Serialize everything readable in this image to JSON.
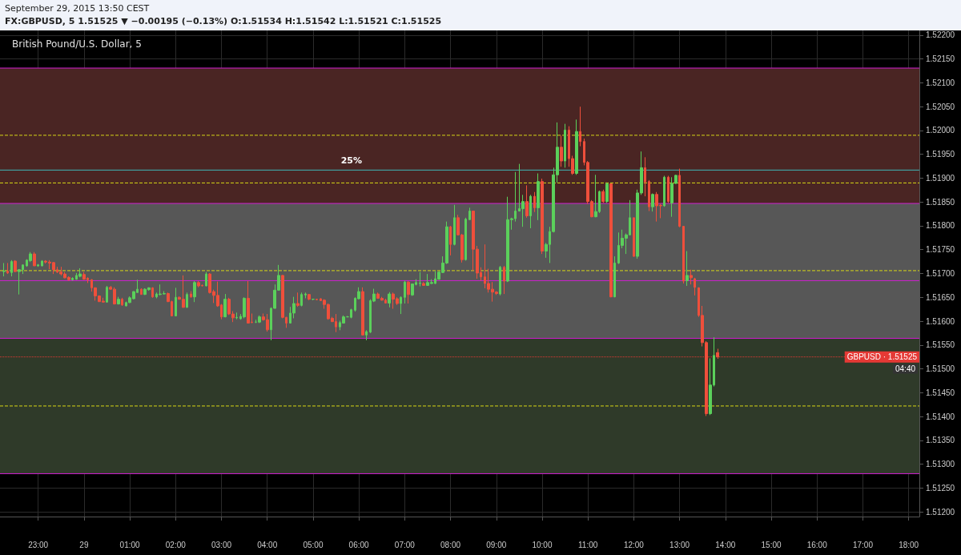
{
  "chart_data": {
    "type": "candlestick",
    "title": "British Pound/U.S. Dollar, 5",
    "subtitle": "FX:GBPUSD, 5 1.51525 ▼ −0.00195 (−0.13%) O:1.51534 H:1.51542 L:1.51521 C:1.51525",
    "annotations": [
      "September 29, 2015 13:50 CEST",
      "04:40",
      "25%"
    ],
    "x": [
      "2015-09-28T22:15",
      "2015-09-28T22:20",
      "2015-09-28T22:25",
      "2015-09-28T22:30",
      "2015-09-28T22:35",
      "2015-09-28T22:40",
      "2015-09-28T22:45",
      "2015-09-28T22:50",
      "2015-09-28T22:55",
      "2015-09-28T23:00",
      "2015-09-28T23:05",
      "2015-09-28T23:10",
      "2015-09-28T23:15",
      "2015-09-28T23:20",
      "2015-09-28T23:25",
      "2015-09-28T23:30",
      "2015-09-28T23:35",
      "2015-09-28T23:40",
      "2015-09-28T23:45",
      "2015-09-28T23:50",
      "2015-09-28T23:55",
      "2015-09-29T00:00",
      "2015-09-29T00:05",
      "2015-09-29T00:10",
      "2015-09-29T00:15",
      "2015-09-29T00:20",
      "2015-09-29T00:25",
      "2015-09-29T00:30",
      "2015-09-29T00:35",
      "2015-09-29T00:40",
      "2015-09-29T00:45",
      "2015-09-29T00:50",
      "2015-09-29T00:55",
      "2015-09-29T01:00",
      "2015-09-29T01:05",
      "2015-09-29T01:10",
      "2015-09-29T01:15",
      "2015-09-29T01:20",
      "2015-09-29T01:25",
      "2015-09-29T01:30",
      "2015-09-29T01:35",
      "2015-09-29T01:40",
      "2015-09-29T01:45",
      "2015-09-29T01:50",
      "2015-09-29T01:55",
      "2015-09-29T02:00",
      "2015-09-29T02:05",
      "2015-09-29T02:10",
      "2015-09-29T02:15",
      "2015-09-29T02:20",
      "2015-09-29T02:25",
      "2015-09-29T02:30",
      "2015-09-29T02:35",
      "2015-09-29T02:40",
      "2015-09-29T02:45",
      "2015-09-29T02:50",
      "2015-09-29T02:55",
      "2015-09-29T03:00",
      "2015-09-29T03:05",
      "2015-09-29T03:10",
      "2015-09-29T03:15",
      "2015-09-29T03:20",
      "2015-09-29T03:25",
      "2015-09-29T03:30",
      "2015-09-29T03:35",
      "2015-09-29T03:40",
      "2015-09-29T03:45",
      "2015-09-29T03:50",
      "2015-09-29T03:55",
      "2015-09-29T04:00",
      "2015-09-29T04:05",
      "2015-09-29T04:10",
      "2015-09-29T04:15",
      "2015-09-29T04:20",
      "2015-09-29T04:25",
      "2015-09-29T04:30",
      "2015-09-29T04:35",
      "2015-09-29T04:40",
      "2015-09-29T04:45",
      "2015-09-29T04:50",
      "2015-09-29T04:55",
      "2015-09-29T05:00",
      "2015-09-29T05:05",
      "2015-09-29T05:10",
      "2015-09-29T05:15",
      "2015-09-29T05:20",
      "2015-09-29T05:25",
      "2015-09-29T05:30",
      "2015-09-29T05:35",
      "2015-09-29T05:40",
      "2015-09-29T05:45",
      "2015-09-29T05:50",
      "2015-09-29T05:55",
      "2015-09-29T06:00",
      "2015-09-29T06:05",
      "2015-09-29T06:10",
      "2015-09-29T06:15",
      "2015-09-29T06:20",
      "2015-09-29T06:25",
      "2015-09-29T06:30",
      "2015-09-29T06:35",
      "2015-09-29T06:40",
      "2015-09-29T06:45",
      "2015-09-29T06:50",
      "2015-09-29T06:55",
      "2015-09-29T07:00",
      "2015-09-29T07:05",
      "2015-09-29T07:10",
      "2015-09-29T07:15",
      "2015-09-29T07:20",
      "2015-09-29T07:25",
      "2015-09-29T07:30",
      "2015-09-29T07:35",
      "2015-09-29T07:40",
      "2015-09-29T07:45",
      "2015-09-29T07:50",
      "2015-09-29T07:55",
      "2015-09-29T08:00",
      "2015-09-29T08:05",
      "2015-09-29T08:10",
      "2015-09-29T08:15",
      "2015-09-29T08:20",
      "2015-09-29T08:25",
      "2015-09-29T08:30",
      "2015-09-29T08:35",
      "2015-09-29T08:40",
      "2015-09-29T08:45",
      "2015-09-29T08:50",
      "2015-09-29T08:55",
      "2015-09-29T09:00",
      "2015-09-29T09:05",
      "2015-09-29T09:10",
      "2015-09-29T09:15",
      "2015-09-29T09:20",
      "2015-09-29T09:25",
      "2015-09-29T09:30",
      "2015-09-29T09:35",
      "2015-09-29T09:40",
      "2015-09-29T09:45",
      "2015-09-29T09:50",
      "2015-09-29T09:55",
      "2015-09-29T10:00",
      "2015-09-29T10:05",
      "2015-09-29T10:10",
      "2015-09-29T10:15",
      "2015-09-29T10:20",
      "2015-09-29T10:25",
      "2015-09-29T10:30",
      "2015-09-29T10:35",
      "2015-09-29T10:40",
      "2015-09-29T10:45",
      "2015-09-29T10:50",
      "2015-09-29T10:55",
      "2015-09-29T11:00",
      "2015-09-29T11:05",
      "2015-09-29T11:10",
      "2015-09-29T11:15",
      "2015-09-29T11:20",
      "2015-09-29T11:25",
      "2015-09-29T11:30",
      "2015-09-29T11:35",
      "2015-09-29T11:40",
      "2015-09-29T11:45",
      "2015-09-29T11:50",
      "2015-09-29T11:55",
      "2015-09-29T12:00",
      "2015-09-29T12:05",
      "2015-09-29T12:10",
      "2015-09-29T12:15",
      "2015-09-29T12:20",
      "2015-09-29T12:25",
      "2015-09-29T12:30",
      "2015-09-29T12:35",
      "2015-09-29T12:40",
      "2015-09-29T12:45",
      "2015-09-29T12:50",
      "2015-09-29T12:55",
      "2015-09-29T13:00",
      "2015-09-29T13:05",
      "2015-09-29T13:10",
      "2015-09-29T13:15",
      "2015-09-29T13:20",
      "2015-09-29T13:25",
      "2015-09-29T13:30",
      "2015-09-29T13:35",
      "2015-09-29T13:40",
      "2015-09-29T13:45",
      "2015-09-29T13:50"
    ],
    "ohlc": [
      [
        1.51704,
        1.51722,
        1.51694,
        1.51705
      ],
      [
        1.51705,
        1.51722,
        1.51699,
        1.51701
      ],
      [
        1.51702,
        1.51728,
        1.51694,
        1.51725
      ],
      [
        1.51726,
        1.51728,
        1.51703,
        1.51704
      ],
      [
        1.51704,
        1.51709,
        1.51656,
        1.51708
      ],
      [
        1.51708,
        1.51719,
        1.51699,
        1.51718
      ],
      [
        1.51716,
        1.5173,
        1.51714,
        1.51728
      ],
      [
        1.51727,
        1.51745,
        1.51724,
        1.51741
      ],
      [
        1.51741,
        1.51745,
        1.51716,
        1.51716
      ],
      [
        1.51716,
        1.5172,
        1.51714,
        1.51718
      ],
      [
        1.51716,
        1.51728,
        1.51715,
        1.51726
      ],
      [
        1.51726,
        1.51728,
        1.51721,
        1.51724
      ],
      [
        1.51724,
        1.51728,
        1.51709,
        1.51722
      ],
      [
        1.51723,
        1.51724,
        1.51699,
        1.51708
      ],
      [
        1.51708,
        1.51714,
        1.51701,
        1.51703
      ],
      [
        1.51703,
        1.51714,
        1.51696,
        1.51699
      ],
      [
        1.51699,
        1.51703,
        1.5169,
        1.51691
      ],
      [
        1.51692,
        1.51694,
        1.51685,
        1.51687
      ],
      [
        1.51687,
        1.51692,
        1.51685,
        1.5169
      ],
      [
        1.51688,
        1.51701,
        1.51687,
        1.51696
      ],
      [
        1.51694,
        1.51711,
        1.51692,
        1.51699
      ],
      [
        1.51698,
        1.51703,
        1.51687,
        1.51688
      ],
      [
        1.5169,
        1.51692,
        1.5168,
        1.51687
      ],
      [
        1.51687,
        1.51688,
        1.51662,
        1.5167
      ],
      [
        1.5167,
        1.51671,
        1.51643,
        1.51653
      ],
      [
        1.51653,
        1.51654,
        1.5164,
        1.51641
      ],
      [
        1.51642,
        1.51649,
        1.51639,
        1.5164
      ],
      [
        1.5164,
        1.51674,
        1.51639,
        1.51671
      ],
      [
        1.51671,
        1.51674,
        1.51666,
        1.51667
      ],
      [
        1.51667,
        1.51671,
        1.51635,
        1.51636
      ],
      [
        1.51636,
        1.51651,
        1.51635,
        1.51646
      ],
      [
        1.51646,
        1.51649,
        1.51632,
        1.51634
      ],
      [
        1.51632,
        1.51641,
        1.51631,
        1.51639
      ],
      [
        1.51639,
        1.51652,
        1.51638,
        1.51649
      ],
      [
        1.51647,
        1.51663,
        1.51646,
        1.51662
      ],
      [
        1.5166,
        1.51687,
        1.5166,
        1.51667
      ],
      [
        1.51667,
        1.51669,
        1.51656,
        1.51656
      ],
      [
        1.51656,
        1.51669,
        1.51655,
        1.51667
      ],
      [
        1.51666,
        1.51671,
        1.51664,
        1.5167
      ],
      [
        1.5167,
        1.51671,
        1.51649,
        1.51651
      ],
      [
        1.51651,
        1.5166,
        1.51648,
        1.51657
      ],
      [
        1.51656,
        1.51677,
        1.51654,
        1.51657
      ],
      [
        1.51657,
        1.51663,
        1.51656,
        1.51658
      ],
      [
        1.51658,
        1.5166,
        1.5164,
        1.51641
      ],
      [
        1.51641,
        1.51643,
        1.5161,
        1.51611
      ],
      [
        1.51611,
        1.5167,
        1.5161,
        1.5165
      ],
      [
        1.5165,
        1.51652,
        1.51645,
        1.51646
      ],
      [
        1.51646,
        1.51696,
        1.51628,
        1.51629
      ],
      [
        1.51629,
        1.5166,
        1.51628,
        1.51656
      ],
      [
        1.51657,
        1.51663,
        1.51649,
        1.51651
      ],
      [
        1.51651,
        1.51684,
        1.5164,
        1.51681
      ],
      [
        1.51681,
        1.51684,
        1.51671,
        1.51674
      ],
      [
        1.51675,
        1.51677,
        1.51673,
        1.51674
      ],
      [
        1.51674,
        1.51703,
        1.51673,
        1.51699
      ],
      [
        1.51699,
        1.51701,
        1.51658,
        1.5166
      ],
      [
        1.51662,
        1.51666,
        1.51638,
        1.51654
      ],
      [
        1.51654,
        1.51683,
        1.5163,
        1.51632
      ],
      [
        1.51634,
        1.51636,
        1.51604,
        1.51609
      ],
      [
        1.51609,
        1.51657,
        1.51608,
        1.51646
      ],
      [
        1.51646,
        1.51649,
        1.51613,
        1.51615
      ],
      [
        1.51615,
        1.51621,
        1.51598,
        1.51607
      ],
      [
        1.51607,
        1.51618,
        1.51604,
        1.51608
      ],
      [
        1.51605,
        1.51615,
        1.51603,
        1.5161
      ],
      [
        1.51609,
        1.5165,
        1.51606,
        1.51648
      ],
      [
        1.51648,
        1.51684,
        1.51595,
        1.51596
      ],
      [
        1.51598,
        1.51616,
        1.51596,
        1.51597
      ],
      [
        1.51598,
        1.51603,
        1.51596,
        1.51598
      ],
      [
        1.51598,
        1.51612,
        1.51596,
        1.51609
      ],
      [
        1.51609,
        1.51616,
        1.51601,
        1.51603
      ],
      [
        1.51603,
        1.51615,
        1.51578,
        1.51582
      ],
      [
        1.51582,
        1.51629,
        1.5156,
        1.51627
      ],
      [
        1.51627,
        1.51677,
        1.51626,
        1.51665
      ],
      [
        1.51665,
        1.51718,
        1.51664,
        1.51696
      ],
      [
        1.51696,
        1.51697,
        1.51606,
        1.51608
      ],
      [
        1.51608,
        1.51609,
        1.51586,
        1.51596
      ],
      [
        1.51596,
        1.5163,
        1.51595,
        1.51617
      ],
      [
        1.51617,
        1.51651,
        1.51606,
        1.51637
      ],
      [
        1.51637,
        1.5166,
        1.5163,
        1.51633
      ],
      [
        1.51633,
        1.5166,
        1.51631,
        1.51656
      ],
      [
        1.51655,
        1.5166,
        1.51648,
        1.51657
      ],
      [
        1.51656,
        1.51657,
        1.51644,
        1.51646
      ],
      [
        1.51646,
        1.51647,
        1.51644,
        1.51646
      ],
      [
        1.51646,
        1.51647,
        1.51644,
        1.51645
      ],
      [
        1.51647,
        1.51648,
        1.51642,
        1.51643
      ],
      [
        1.51644,
        1.51646,
        1.51626,
        1.51635
      ],
      [
        1.51635,
        1.51637,
        1.51603,
        1.51605
      ],
      [
        1.51606,
        1.51609,
        1.51598,
        1.51599
      ],
      [
        1.51599,
        1.51615,
        1.51577,
        1.51588
      ],
      [
        1.51588,
        1.51601,
        1.51581,
        1.51597
      ],
      [
        1.51596,
        1.51612,
        1.51595,
        1.51609
      ],
      [
        1.51609,
        1.51611,
        1.51608,
        1.51609
      ],
      [
        1.51608,
        1.51626,
        1.51606,
        1.51624
      ],
      [
        1.51623,
        1.5165,
        1.5162,
        1.51648
      ],
      [
        1.51647,
        1.51671,
        1.51646,
        1.51662
      ],
      [
        1.51662,
        1.51671,
        1.5157,
        1.51571
      ],
      [
        1.51571,
        1.51581,
        1.5156,
        1.51578
      ],
      [
        1.51577,
        1.51646,
        1.51575,
        1.51643
      ],
      [
        1.51642,
        1.51668,
        1.5164,
        1.51657
      ],
      [
        1.51657,
        1.5166,
        1.51647,
        1.51648
      ],
      [
        1.51648,
        1.51651,
        1.51643,
        1.51644
      ],
      [
        1.51644,
        1.51647,
        1.51637,
        1.51638
      ],
      [
        1.51638,
        1.51661,
        1.51629,
        1.51657
      ],
      [
        1.51657,
        1.5166,
        1.51626,
        1.51646
      ],
      [
        1.51647,
        1.5165,
        1.51634,
        1.51637
      ],
      [
        1.51637,
        1.51652,
        1.51615,
        1.5165
      ],
      [
        1.5165,
        1.51685,
        1.51637,
        1.51682
      ],
      [
        1.51682,
        1.51684,
        1.51637,
        1.51656
      ],
      [
        1.51655,
        1.51679,
        1.51653,
        1.51678
      ],
      [
        1.51677,
        1.51688,
        1.51675,
        1.51681
      ],
      [
        1.51679,
        1.51703,
        1.51673,
        1.5168
      ],
      [
        1.51679,
        1.51682,
        1.51674,
        1.51675
      ],
      [
        1.51675,
        1.51699,
        1.51674,
        1.51681
      ],
      [
        1.51679,
        1.51688,
        1.51678,
        1.51681
      ],
      [
        1.51679,
        1.51705,
        1.51678,
        1.51689
      ],
      [
        1.51688,
        1.51705,
        1.51687,
        1.51703
      ],
      [
        1.51702,
        1.51736,
        1.51701,
        1.51722
      ],
      [
        1.51722,
        1.51809,
        1.5172,
        1.51798
      ],
      [
        1.51798,
        1.518,
        1.51738,
        1.51761
      ],
      [
        1.51761,
        1.51844,
        1.51759,
        1.51817
      ],
      [
        1.51817,
        1.51823,
        1.5178,
        1.51781
      ],
      [
        1.51781,
        1.51783,
        1.51723,
        1.51729
      ],
      [
        1.51729,
        1.51817,
        1.51727,
        1.51814
      ],
      [
        1.51813,
        1.51838,
        1.51812,
        1.51831
      ],
      [
        1.51831,
        1.51832,
        1.51706,
        1.51751
      ],
      [
        1.51751,
        1.51758,
        1.51689,
        1.51701
      ],
      [
        1.51702,
        1.51713,
        1.51685,
        1.51693
      ],
      [
        1.51693,
        1.51761,
        1.51669,
        1.51679
      ],
      [
        1.51679,
        1.5171,
        1.5166,
        1.51667
      ],
      [
        1.51667,
        1.51682,
        1.51641,
        1.51661
      ],
      [
        1.51661,
        1.51663,
        1.51655,
        1.51658
      ],
      [
        1.51657,
        1.51716,
        1.51654,
        1.51713
      ],
      [
        1.51713,
        1.51716,
        1.51657,
        1.51684
      ],
      [
        1.51684,
        1.51861,
        1.51682,
        1.51813
      ],
      [
        1.51813,
        1.51817,
        1.51792,
        1.51815
      ],
      [
        1.51815,
        1.51913,
        1.51809,
        1.51831
      ],
      [
        1.51831,
        1.5193,
        1.5183,
        1.51836
      ],
      [
        1.51836,
        1.51865,
        1.51798,
        1.51851
      ],
      [
        1.51851,
        1.51885,
        1.51817,
        1.51821
      ],
      [
        1.51821,
        1.51865,
        1.51795,
        1.51862
      ],
      [
        1.51862,
        1.51871,
        1.51829,
        1.51838
      ],
      [
        1.51838,
        1.5191,
        1.51812,
        1.51893
      ],
      [
        1.51893,
        1.51899,
        1.51741,
        1.51747
      ],
      [
        1.51747,
        1.51764,
        1.51733,
        1.51761
      ],
      [
        1.51761,
        1.51798,
        1.51722,
        1.51788
      ],
      [
        1.51788,
        1.51922,
        1.51786,
        1.51907
      ],
      [
        1.51907,
        1.52017,
        1.51891,
        1.51965
      ],
      [
        1.51965,
        1.51989,
        1.51924,
        1.51936
      ],
      [
        1.51936,
        1.52014,
        1.51922,
        1.52001
      ],
      [
        1.52001,
        1.52009,
        1.51924,
        1.51941
      ],
      [
        1.51941,
        1.51947,
        1.51907,
        1.5191
      ],
      [
        1.5191,
        1.52023,
        1.51907,
        1.51998
      ],
      [
        1.51998,
        1.5205,
        1.51967,
        1.51977
      ],
      [
        1.51977,
        1.51983,
        1.51927,
        1.51933
      ],
      [
        1.51933,
        1.51936,
        1.51846,
        1.51851
      ],
      [
        1.51851,
        1.51854,
        1.51818,
        1.51819
      ],
      [
        1.51819,
        1.51907,
        1.51818,
        1.5183
      ],
      [
        1.5183,
        1.51874,
        1.51827,
        1.51872
      ],
      [
        1.51872,
        1.51876,
        1.51848,
        1.51851
      ],
      [
        1.51851,
        1.51891,
        1.51848,
        1.51888
      ],
      [
        1.51888,
        1.51889,
        1.5165,
        1.51651
      ],
      [
        1.51651,
        1.51736,
        1.5165,
        1.51722
      ],
      [
        1.51722,
        1.51786,
        1.5172,
        1.51759
      ],
      [
        1.51759,
        1.51792,
        1.51753,
        1.51774
      ],
      [
        1.51774,
        1.51784,
        1.51741,
        1.51781
      ],
      [
        1.51781,
        1.51854,
        1.5178,
        1.51817
      ],
      [
        1.51817,
        1.51817,
        1.51735,
        1.51736
      ],
      [
        1.51736,
        1.51876,
        1.51731,
        1.51869
      ],
      [
        1.51869,
        1.51956,
        1.51865,
        1.51922
      ],
      [
        1.51922,
        1.51944,
        1.51862,
        1.51892
      ],
      [
        1.51893,
        1.51896,
        1.51831,
        1.5184
      ],
      [
        1.5184,
        1.51868,
        1.5183,
        1.51866
      ],
      [
        1.51866,
        1.51871,
        1.51809,
        1.51842
      ],
      [
        1.51843,
        1.51846,
        1.51816,
        1.51842
      ],
      [
        1.51842,
        1.51905,
        1.5184,
        1.51902
      ],
      [
        1.51902,
        1.51905,
        1.51848,
        1.51851
      ],
      [
        1.51848,
        1.51902,
        1.51819,
        1.51889
      ],
      [
        1.51889,
        1.51907,
        1.51888,
        1.51906
      ],
      [
        1.51906,
        1.5192,
        1.51797,
        1.51799
      ],
      [
        1.51799,
        1.518,
        1.51679,
        1.51684
      ],
      [
        1.51685,
        1.51747,
        1.51674,
        1.51696
      ],
      [
        1.51696,
        1.51708,
        1.51677,
        1.51691
      ],
      [
        1.51689,
        1.51691,
        1.51654,
        1.51671
      ],
      [
        1.5167,
        1.51671,
        1.51609,
        1.51612
      ],
      [
        1.51612,
        1.51632,
        1.51547,
        1.51555
      ],
      [
        1.51555,
        1.51558,
        1.51401,
        1.51406
      ],
      [
        1.51406,
        1.51522,
        1.51403,
        1.51466
      ],
      [
        1.51466,
        1.51566,
        1.51463,
        1.51528
      ],
      [
        1.51534,
        1.51542,
        1.51521,
        1.51525
      ]
    ],
    "xlim": [
      "2015-09-28T22:10",
      "2015-09-29T18:14"
    ],
    "xticks": [
      {
        "value": "2015-09-28T23:00",
        "label": "23:00"
      },
      {
        "value": "2015-09-29T00:00",
        "label": "29"
      },
      {
        "value": "2015-09-29T01:00",
        "label": "01:00"
      },
      {
        "value": "2015-09-29T02:00",
        "label": "02:00"
      },
      {
        "value": "2015-09-29T03:00",
        "label": "03:00"
      },
      {
        "value": "2015-09-29T04:00",
        "label": "04:00"
      },
      {
        "value": "2015-09-29T05:00",
        "label": "05:00"
      },
      {
        "value": "2015-09-29T06:00",
        "label": "06:00"
      },
      {
        "value": "2015-09-29T07:00",
        "label": "07:00"
      },
      {
        "value": "2015-09-29T08:00",
        "label": "08:00"
      },
      {
        "value": "2015-09-29T09:00",
        "label": "09:00"
      },
      {
        "value": "2015-09-29T10:00",
        "label": "10:00"
      },
      {
        "value": "2015-09-29T11:00",
        "label": "11:00"
      },
      {
        "value": "2015-09-29T12:00",
        "label": "12:00"
      },
      {
        "value": "2015-09-29T13:00",
        "label": "13:00"
      },
      {
        "value": "2015-09-29T14:00",
        "label": "14:00"
      },
      {
        "value": "2015-09-29T15:00",
        "label": "15:00"
      },
      {
        "value": "2015-09-29T16:00",
        "label": "16:00"
      },
      {
        "value": "2015-09-29T17:00",
        "label": "17:00"
      },
      {
        "value": "2015-09-29T18:00",
        "label": "18:00"
      }
    ],
    "ylim": [
      1.5119,
      1.5221
    ],
    "yticks": [
      {
        "value": 1.512,
        "label": "1.51200"
      },
      {
        "value": 1.5125,
        "label": "1.51250"
      },
      {
        "value": 1.513,
        "label": "1.51300"
      },
      {
        "value": 1.5135,
        "label": "1.51350"
      },
      {
        "value": 1.514,
        "label": "1.51400"
      },
      {
        "value": 1.5145,
        "label": "1.51450"
      },
      {
        "value": 1.515,
        "label": "1.51500"
      },
      {
        "value": 1.5155,
        "label": "1.51550"
      },
      {
        "value": 1.516,
        "label": "1.51600"
      },
      {
        "value": 1.5165,
        "label": "1.51650"
      },
      {
        "value": 1.517,
        "label": "1.51700"
      },
      {
        "value": 1.5175,
        "label": "1.51750"
      },
      {
        "value": 1.518,
        "label": "1.51800"
      },
      {
        "value": 1.5185,
        "label": "1.51850"
      },
      {
        "value": 1.519,
        "label": "1.51900"
      },
      {
        "value": 1.5195,
        "label": "1.51950"
      },
      {
        "value": 1.52,
        "label": "1.52000"
      },
      {
        "value": 1.5205,
        "label": "1.52050"
      },
      {
        "value": 1.521,
        "label": "1.52100"
      },
      {
        "value": 1.5215,
        "label": "1.52150"
      },
      {
        "value": 1.522,
        "label": "1.52200"
      }
    ],
    "bands": [
      {
        "axis": "y",
        "from": 1.51847,
        "to": 1.52131,
        "color": "#4a2523"
      },
      {
        "axis": "y",
        "from": 1.51564,
        "to": 1.51847,
        "color": "#575757"
      },
      {
        "axis": "y",
        "from": 1.5128,
        "to": 1.51564,
        "color": "#2f3a29"
      }
    ],
    "ref_lines": [
      {
        "axis": "y",
        "value": 1.52131,
        "color": "#d21fd2",
        "line_style": "solid"
      },
      {
        "axis": "y",
        "value": 1.51847,
        "color": "#d21fd2",
        "line_style": "solid"
      },
      {
        "axis": "y",
        "value": 1.51685,
        "color": "#d21fd2",
        "line_style": "solid"
      },
      {
        "axis": "y",
        "value": 1.51564,
        "color": "#d21fd2",
        "line_style": "solid"
      },
      {
        "axis": "y",
        "value": 1.5128,
        "color": "#d21fd2",
        "line_style": "solid"
      },
      {
        "axis": "y",
        "value": 1.5199,
        "color": "#d6d616",
        "line_style": "dashed"
      },
      {
        "axis": "y",
        "value": 1.5189,
        "color": "#d6d616",
        "line_style": "dashed"
      },
      {
        "axis": "y",
        "value": 1.51706,
        "color": "#d6d616",
        "line_style": "dashed"
      },
      {
        "axis": "y",
        "value": 1.51422,
        "color": "#d6d616",
        "line_style": "dashed"
      },
      {
        "axis": "y",
        "value": 1.51917,
        "color": "#3fb8b8",
        "line_style": "solid"
      },
      {
        "axis": "y",
        "value": 1.51525,
        "label": "GBPUSD · 1.51525",
        "color": "#e53935",
        "line_style": "dotted"
      }
    ],
    "grid": true
  }
}
